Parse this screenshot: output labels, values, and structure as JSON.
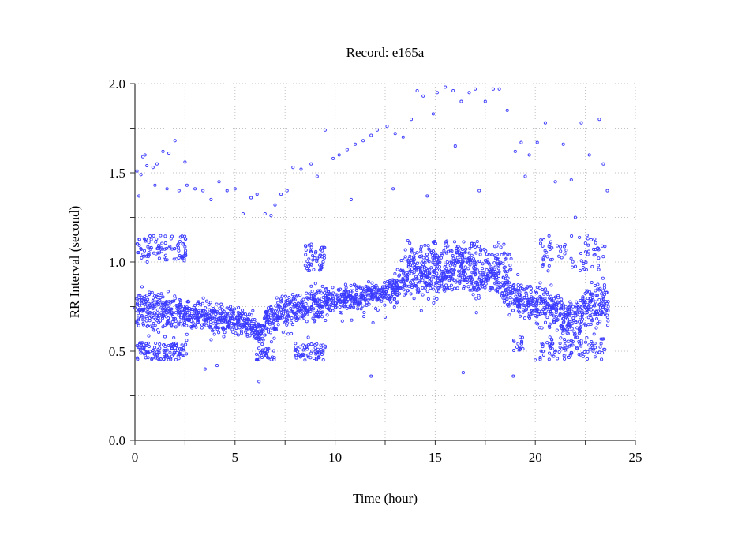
{
  "chart_data": {
    "type": "scatter",
    "title": "Record:  e165a",
    "xlabel": "Time (hour)",
    "ylabel": "RR Interval (second)",
    "xlim": [
      0,
      25
    ],
    "ylim": [
      0.0,
      2.0
    ],
    "xticks": [
      "0",
      "5",
      "10",
      "15",
      "20",
      "25"
    ],
    "xtick_values": [
      0,
      5,
      10,
      15,
      20,
      25
    ],
    "yticks": [
      "0.0",
      "0.5",
      "1.0",
      "1.5",
      "2.0"
    ],
    "ytick_values": [
      0.0,
      0.5,
      1.0,
      1.5,
      2.0
    ],
    "grid": true,
    "marker": "open-circle",
    "color": "#3b3bff",
    "band": {
      "x": [
        0,
        0.5,
        1,
        1.5,
        2,
        2.5,
        3,
        3.5,
        4,
        4.5,
        5,
        5.5,
        6,
        6.2,
        6.5,
        7,
        7.5,
        8,
        8.5,
        9,
        9.5,
        10,
        10.5,
        11,
        11.5,
        12,
        12.5,
        13,
        13.5,
        14,
        14.5,
        15,
        15.5,
        16,
        16.5,
        17,
        17.5,
        18,
        18.5,
        19,
        19.5,
        20,
        20.5,
        21,
        21.5,
        22,
        22.5,
        23,
        23.5,
        23.65
      ],
      "y": [
        0.72,
        0.75,
        0.72,
        0.72,
        0.72,
        0.72,
        0.7,
        0.7,
        0.7,
        0.68,
        0.66,
        0.65,
        0.63,
        0.58,
        0.67,
        0.7,
        0.72,
        0.74,
        0.76,
        0.77,
        0.78,
        0.78,
        0.8,
        0.8,
        0.82,
        0.83,
        0.84,
        0.85,
        0.92,
        0.95,
        0.93,
        0.93,
        0.92,
        0.93,
        0.96,
        0.92,
        0.92,
        0.92,
        0.88,
        0.8,
        0.78,
        0.77,
        0.76,
        0.73,
        0.68,
        0.7,
        0.74,
        0.76,
        0.78,
        0.72
      ],
      "spread": [
        0.1,
        0.09,
        0.09,
        0.09,
        0.08,
        0.08,
        0.07,
        0.07,
        0.07,
        0.07,
        0.07,
        0.07,
        0.07,
        0.06,
        0.08,
        0.08,
        0.08,
        0.08,
        0.07,
        0.07,
        0.07,
        0.06,
        0.06,
        0.06,
        0.05,
        0.05,
        0.05,
        0.06,
        0.1,
        0.12,
        0.1,
        0.1,
        0.1,
        0.1,
        0.12,
        0.1,
        0.09,
        0.09,
        0.1,
        0.1,
        0.09,
        0.09,
        0.09,
        0.09,
        0.1,
        0.1,
        0.1,
        0.1,
        0.1,
        0.08
      ]
    },
    "clusters": [
      {
        "x": [
          0.1,
          2.6
        ],
        "y": [
          1.0,
          1.15
        ],
        "n": 90
      },
      {
        "x": [
          0.1,
          2.6
        ],
        "y": [
          0.45,
          0.55
        ],
        "n": 110
      },
      {
        "x": [
          6.0,
          7.0
        ],
        "y": [
          0.45,
          0.52
        ],
        "n": 30
      },
      {
        "x": [
          8.5,
          9.5
        ],
        "y": [
          0.95,
          1.1
        ],
        "n": 50
      },
      {
        "x": [
          8.0,
          9.6
        ],
        "y": [
          0.45,
          0.55
        ],
        "n": 60
      },
      {
        "x": [
          18.9,
          19.4
        ],
        "y": [
          0.5,
          0.58
        ],
        "n": 15
      },
      {
        "x": [
          20.2,
          23.5
        ],
        "y": [
          0.95,
          1.15
        ],
        "n": 70
      },
      {
        "x": [
          20.2,
          23.5
        ],
        "y": [
          0.45,
          0.58
        ],
        "n": 90
      },
      {
        "x": [
          13.5,
          18.8
        ],
        "y": [
          0.98,
          1.12
        ],
        "n": 120
      }
    ],
    "outliers": [
      [
        0.1,
        1.51
      ],
      [
        0.3,
        1.49
      ],
      [
        0.4,
        1.59
      ],
      [
        0.5,
        1.6
      ],
      [
        0.6,
        1.54
      ],
      [
        0.9,
        1.53
      ],
      [
        1.1,
        1.55
      ],
      [
        1.4,
        1.62
      ],
      [
        1.7,
        1.61
      ],
      [
        2.0,
        1.68
      ],
      [
        2.5,
        1.56
      ],
      [
        2.6,
        1.43
      ],
      [
        0.2,
        1.37
      ],
      [
        1.0,
        1.43
      ],
      [
        1.6,
        1.41
      ],
      [
        2.2,
        1.4
      ],
      [
        3.0,
        1.41
      ],
      [
        3.4,
        1.4
      ],
      [
        3.8,
        1.35
      ],
      [
        4.2,
        1.45
      ],
      [
        4.6,
        1.4
      ],
      [
        5.0,
        1.41
      ],
      [
        5.4,
        1.27
      ],
      [
        5.8,
        1.36
      ],
      [
        6.1,
        1.38
      ],
      [
        6.5,
        1.27
      ],
      [
        6.8,
        1.26
      ],
      [
        7.0,
        1.32
      ],
      [
        7.3,
        1.38
      ],
      [
        7.6,
        1.4
      ],
      [
        7.9,
        1.53
      ],
      [
        8.3,
        1.52
      ],
      [
        8.8,
        1.55
      ],
      [
        9.1,
        1.48
      ],
      [
        9.5,
        1.74
      ],
      [
        9.9,
        1.58
      ],
      [
        10.2,
        1.6
      ],
      [
        10.6,
        1.63
      ],
      [
        11.0,
        1.66
      ],
      [
        11.4,
        1.68
      ],
      [
        11.8,
        1.71
      ],
      [
        12.1,
        1.74
      ],
      [
        12.6,
        1.76
      ],
      [
        13.0,
        1.72
      ],
      [
        13.4,
        1.7
      ],
      [
        13.8,
        1.8
      ],
      [
        14.1,
        1.96
      ],
      [
        14.4,
        1.93
      ],
      [
        14.9,
        1.83
      ],
      [
        15.1,
        1.95
      ],
      [
        15.5,
        1.98
      ],
      [
        15.9,
        1.96
      ],
      [
        16.3,
        1.9
      ],
      [
        16.7,
        1.95
      ],
      [
        17.0,
        1.97
      ],
      [
        17.5,
        1.9
      ],
      [
        17.9,
        1.97
      ],
      [
        18.2,
        1.97
      ],
      [
        18.6,
        1.85
      ],
      [
        19.0,
        1.62
      ],
      [
        19.3,
        1.67
      ],
      [
        19.7,
        1.6
      ],
      [
        20.1,
        1.67
      ],
      [
        20.5,
        1.78
      ],
      [
        21.0,
        1.45
      ],
      [
        21.4,
        1.66
      ],
      [
        21.8,
        1.46
      ],
      [
        22.3,
        1.78
      ],
      [
        22.7,
        1.6
      ],
      [
        23.2,
        1.8
      ],
      [
        23.4,
        1.55
      ],
      [
        23.6,
        1.4
      ],
      [
        10.8,
        1.35
      ],
      [
        12.9,
        1.41
      ],
      [
        14.6,
        1.37
      ],
      [
        16.0,
        1.65
      ],
      [
        17.2,
        1.4
      ],
      [
        19.5,
        1.48
      ],
      [
        22.0,
        1.25
      ],
      [
        3.5,
        0.4
      ],
      [
        6.2,
        0.33
      ],
      [
        11.8,
        0.36
      ],
      [
        16.4,
        0.38
      ],
      [
        18.9,
        0.36
      ],
      [
        20.0,
        0.45
      ],
      [
        4.1,
        0.42
      ]
    ]
  }
}
